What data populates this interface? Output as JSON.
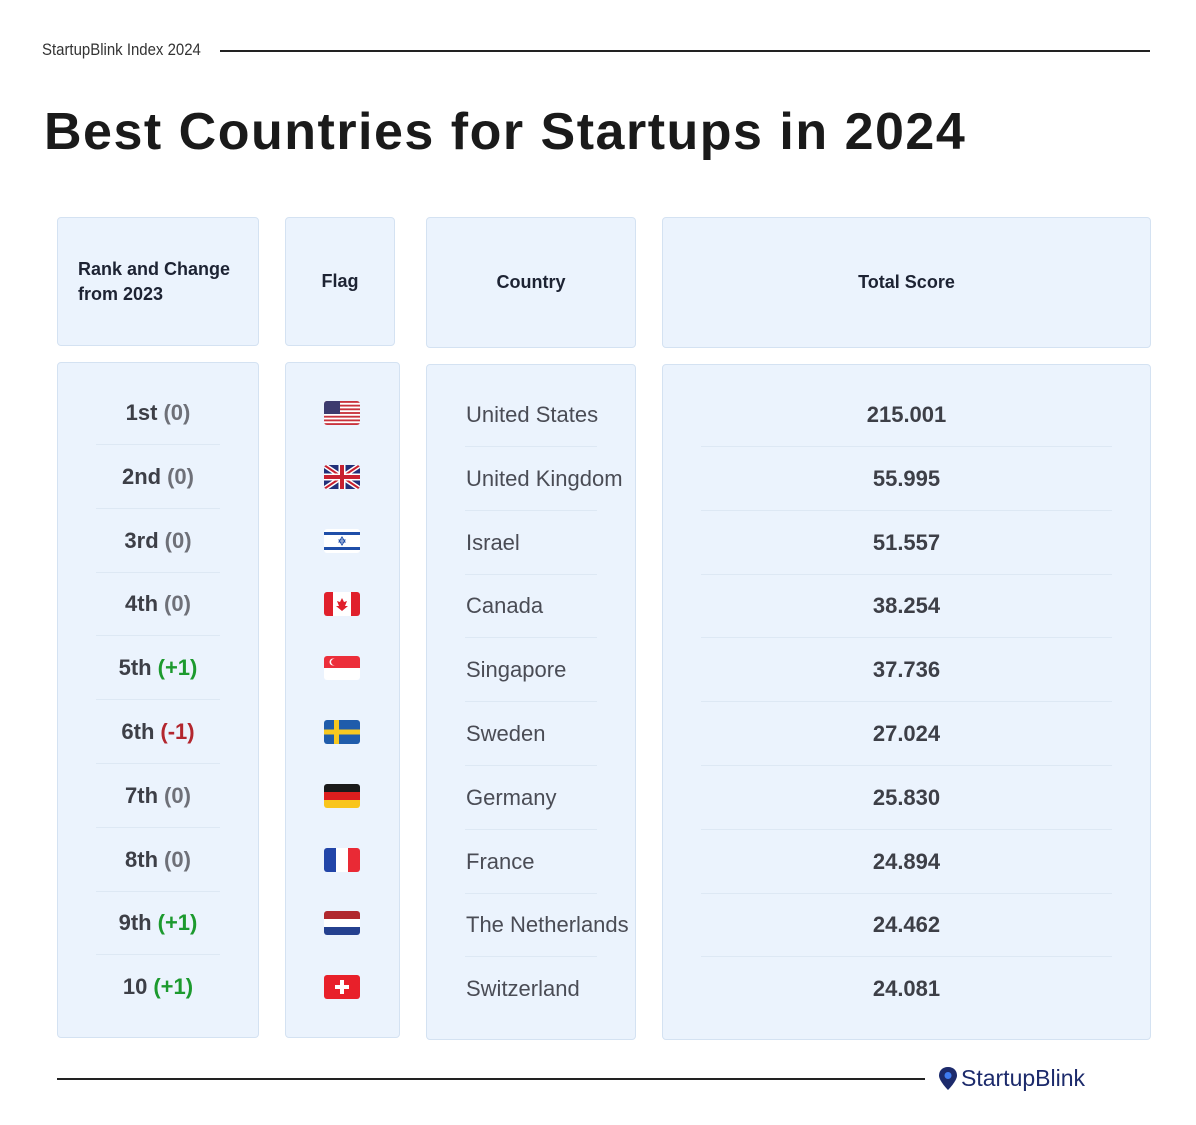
{
  "header": {
    "source": "StartupBlink Index 2024",
    "title": "Best Countries for Startups in 2024"
  },
  "table": {
    "headers": [
      "Rank and Change from 2023",
      "Flag",
      "Country",
      "Total Score"
    ],
    "rows": [
      {
        "rank": "1st",
        "change": "(0)",
        "country": "United States",
        "score": "215.001"
      },
      {
        "rank": "2nd",
        "change": "(0)",
        "country": "United Kingdom",
        "score": "55.995"
      },
      {
        "rank": "3rd",
        "change": "(0)",
        "country": "Israel",
        "score": "51.557"
      },
      {
        "rank": "4th",
        "change": "(0)",
        "country": "Canada",
        "score": "38.254"
      },
      {
        "rank": "5th",
        "change": "(+1)",
        "country": "Singapore",
        "score": "37.736"
      },
      {
        "rank": "6th",
        "change": "(-1)",
        "country": "Sweden",
        "score": "27.024"
      },
      {
        "rank": "7th",
        "change": "(0)",
        "country": "Germany",
        "score": "25.830"
      },
      {
        "rank": "8th",
        "change": "(0)",
        "country": "France",
        "score": "24.894"
      },
      {
        "rank": "9th",
        "change": "(+1)",
        "country": "The Netherlands",
        "score": "24.462"
      },
      {
        "rank": "10",
        "change": "(+1)",
        "country": "Switzerland",
        "score": "24.081"
      }
    ]
  },
  "footer": {
    "logo": "StartupBlink"
  }
}
